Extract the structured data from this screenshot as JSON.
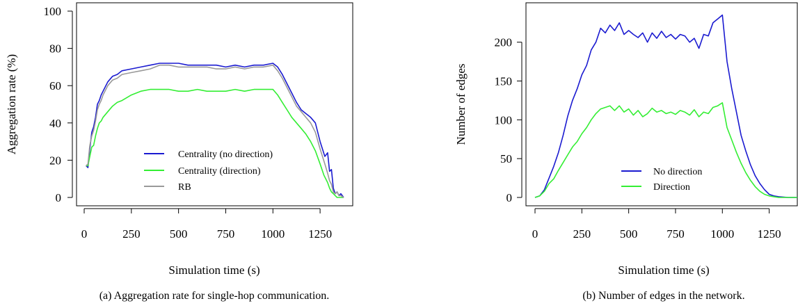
{
  "colors": {
    "blue": "#1a1ad0",
    "green": "#33ee33",
    "gray": "#999999"
  },
  "panels": [
    {
      "caption": "(a) Aggregation rate for single-hop communication.",
      "chart_data": {
        "type": "line",
        "xlabel": "Simulation time (s)",
        "ylabel": "Aggregation rate (%)",
        "xlim": [
          0,
          1375
        ],
        "ylim": [
          0,
          100
        ],
        "x_ticks": [
          "0",
          "250",
          "500",
          "750",
          "1000",
          "1250"
        ],
        "y_ticks": [
          "0",
          "20",
          "40",
          "60",
          "80",
          "100"
        ],
        "legend_position": "bottom-center",
        "series": [
          {
            "name": "Centrality (no direction)",
            "color": "blue",
            "x": [
              10,
              20,
              30,
              40,
              50,
              60,
              70,
              80,
              90,
              100,
              125,
              150,
              175,
              200,
              250,
              300,
              350,
              400,
              450,
              500,
              550,
              600,
              650,
              700,
              750,
              800,
              850,
              900,
              950,
              1000,
              1025,
              1050,
              1075,
              1100,
              1125,
              1150,
              1175,
              1200,
              1225,
              1250,
              1275,
              1290,
              1300,
              1310,
              1320,
              1330,
              1340,
              1350,
              1360,
              1375
            ],
            "y": [
              17,
              16,
              26,
              35,
              38,
              43,
              50,
              52,
              55,
              57,
              62,
              65,
              66,
              68,
              69,
              70,
              71,
              72,
              72,
              72,
              71,
              71,
              71,
              71,
              70,
              71,
              70,
              71,
              71,
              72,
              70,
              66,
              61,
              56,
              51,
              47,
              45,
              43,
              40,
              30,
              22,
              24,
              14,
              15,
              5,
              2,
              3,
              1,
              2,
              0
            ]
          },
          {
            "name": "Centrality (direction)",
            "color": "green",
            "x": [
              10,
              20,
              30,
              40,
              50,
              60,
              70,
              80,
              90,
              100,
              125,
              150,
              175,
              200,
              250,
              300,
              350,
              400,
              450,
              500,
              550,
              600,
              650,
              700,
              750,
              800,
              850,
              900,
              950,
              1000,
              1025,
              1050,
              1075,
              1100,
              1125,
              1150,
              1175,
              1200,
              1225,
              1250,
              1270,
              1290,
              1300,
              1310,
              1320,
              1330,
              1340,
              1350,
              1360,
              1375
            ],
            "y": [
              17,
              17,
              22,
              27,
              28,
              33,
              37,
              40,
              41,
              43,
              46,
              49,
              51,
              52,
              55,
              57,
              58,
              58,
              58,
              57,
              57,
              58,
              57,
              57,
              57,
              58,
              57,
              58,
              58,
              58,
              55,
              51,
              47,
              43,
              40,
              37,
              34,
              30,
              25,
              18,
              12,
              8,
              5,
              3,
              2,
              1,
              0,
              0,
              0,
              0
            ]
          },
          {
            "name": "RB",
            "color": "gray",
            "x": [
              10,
              20,
              30,
              40,
              50,
              60,
              70,
              80,
              90,
              100,
              125,
              150,
              175,
              200,
              250,
              300,
              350,
              400,
              450,
              500,
              550,
              600,
              650,
              700,
              750,
              800,
              850,
              900,
              950,
              1000,
              1025,
              1050,
              1075,
              1100,
              1125,
              1150,
              1175,
              1200,
              1225,
              1250,
              1275,
              1290,
              1300,
              1310,
              1320,
              1330,
              1340,
              1350,
              1360,
              1375
            ],
            "y": [
              17,
              18,
              28,
              33,
              36,
              41,
              47,
              50,
              52,
              55,
              60,
              63,
              64,
              66,
              67,
              68,
              69,
              71,
              71,
              70,
              70,
              70,
              70,
              69,
              69,
              70,
              69,
              70,
              70,
              71,
              68,
              64,
              59,
              54,
              49,
              46,
              43,
              40,
              35,
              26,
              18,
              13,
              9,
              7,
              3,
              2,
              3,
              1,
              1,
              0
            ]
          }
        ]
      }
    },
    {
      "caption": "(b) Number of edges in the network.",
      "chart_data": {
        "type": "line",
        "xlabel": "Simulation time (s)",
        "ylabel": "Number of edges",
        "xlim": [
          0,
          1400
        ],
        "ylim": [
          0,
          240
        ],
        "x_ticks": [
          "0",
          "250",
          "500",
          "750",
          "1000",
          "1250"
        ],
        "y_ticks": [
          "0",
          "50",
          "100",
          "150",
          "200"
        ],
        "legend_position": "bottom-center",
        "series": [
          {
            "name": "No direction",
            "color": "blue",
            "x": [
              0,
              25,
              50,
              75,
              100,
              125,
              150,
              175,
              200,
              225,
              250,
              275,
              300,
              325,
              350,
              375,
              400,
              425,
              450,
              475,
              500,
              525,
              550,
              575,
              600,
              625,
              650,
              675,
              700,
              725,
              750,
              775,
              800,
              825,
              850,
              875,
              900,
              925,
              950,
              975,
              1000,
              1025,
              1050,
              1075,
              1100,
              1125,
              1150,
              1175,
              1200,
              1225,
              1250,
              1275,
              1300,
              1350,
              1400
            ],
            "y": [
              0,
              2,
              10,
              25,
              40,
              58,
              80,
              105,
              125,
              140,
              158,
              170,
              190,
              200,
              218,
              212,
              222,
              215,
              225,
              210,
              215,
              210,
              206,
              212,
              200,
              212,
              205,
              214,
              206,
              210,
              204,
              210,
              208,
              200,
              205,
              192,
              210,
              208,
              225,
              230,
              235,
              175,
              140,
              110,
              80,
              60,
              42,
              28,
              18,
              10,
              4,
              2,
              1,
              0,
              0
            ]
          },
          {
            "name": "Direction",
            "color": "green",
            "x": [
              0,
              25,
              50,
              75,
              100,
              125,
              150,
              175,
              200,
              225,
              250,
              275,
              300,
              325,
              350,
              375,
              400,
              425,
              450,
              475,
              500,
              525,
              550,
              575,
              600,
              625,
              650,
              675,
              700,
              725,
              750,
              775,
              800,
              825,
              850,
              875,
              900,
              925,
              950,
              975,
              1000,
              1025,
              1050,
              1075,
              1100,
              1125,
              1150,
              1175,
              1200,
              1225,
              1250,
              1275,
              1300,
              1350,
              1400
            ],
            "y": [
              0,
              2,
              8,
              18,
              24,
              35,
              45,
              55,
              65,
              72,
              82,
              90,
              100,
              108,
              114,
              116,
              118,
              112,
              118,
              110,
              114,
              106,
              112,
              104,
              108,
              115,
              110,
              112,
              108,
              110,
              107,
              112,
              110,
              106,
              113,
              104,
              110,
              108,
              116,
              118,
              122,
              90,
              74,
              58,
              44,
              32,
              22,
              14,
              8,
              4,
              2,
              1,
              0,
              0,
              0
            ]
          }
        ]
      }
    }
  ]
}
